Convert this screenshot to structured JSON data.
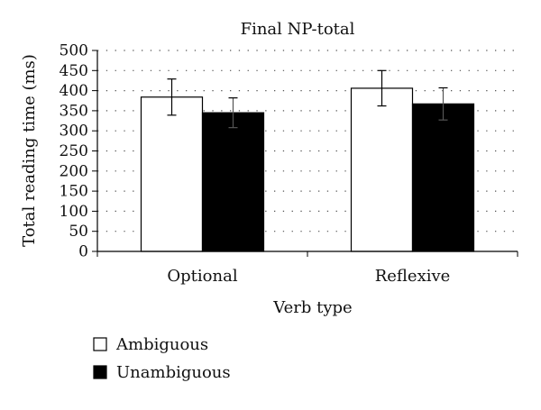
{
  "chart_data": {
    "type": "bar",
    "title": "Final NP-total",
    "xlabel": "Verb type",
    "ylabel": "Total reading time (ms)",
    "categories": [
      "Optional",
      "Reflexive"
    ],
    "series": [
      {
        "name": "Ambiguous",
        "values": [
          384,
          406
        ],
        "error": [
          45,
          44
        ],
        "color": "#ffffff"
      },
      {
        "name": "Unambiguous",
        "values": [
          345,
          367
        ],
        "error": [
          37,
          40
        ],
        "color": "#000000"
      }
    ],
    "ylim": [
      0,
      500
    ],
    "yticks": [
      0,
      50,
      100,
      150,
      200,
      250,
      300,
      350,
      400,
      450,
      500
    ],
    "grid": "dotted",
    "legend_position": "bottom-left"
  }
}
